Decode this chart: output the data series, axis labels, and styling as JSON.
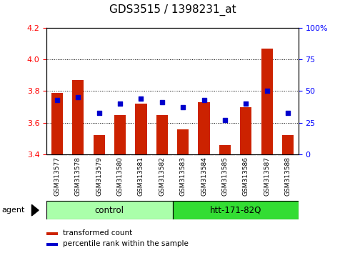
{
  "title": "GDS3515 / 1398231_at",
  "samples": [
    "GSM313577",
    "GSM313578",
    "GSM313579",
    "GSM313580",
    "GSM313581",
    "GSM313582",
    "GSM313583",
    "GSM313584",
    "GSM313585",
    "GSM313586",
    "GSM313587",
    "GSM313588"
  ],
  "transformed_count": [
    3.79,
    3.87,
    3.52,
    3.65,
    3.72,
    3.65,
    3.56,
    3.73,
    3.46,
    3.7,
    4.07,
    3.52
  ],
  "percentile_rank": [
    43,
    45,
    33,
    40,
    44,
    41,
    37,
    43,
    27,
    40,
    50,
    33
  ],
  "ylim_left": [
    3.4,
    4.2
  ],
  "ylim_right": [
    0,
    100
  ],
  "yticks_left": [
    3.4,
    3.6,
    3.8,
    4.0,
    4.2
  ],
  "yticks_right": [
    0,
    25,
    50,
    75,
    100
  ],
  "ytick_labels_right": [
    "0",
    "25",
    "50",
    "75",
    "100%"
  ],
  "groups": [
    {
      "label": "control",
      "indices": [
        0,
        1,
        2,
        3,
        4,
        5
      ],
      "color": "#aaffaa"
    },
    {
      "label": "htt-171-82Q",
      "indices": [
        6,
        7,
        8,
        9,
        10,
        11
      ],
      "color": "#33dd33"
    }
  ],
  "bar_color": "#CC2200",
  "dot_color": "#0000CC",
  "bar_width": 0.55,
  "bg_color": "#FFFFFF",
  "label_bg": "#C8C8C8",
  "agent_label": "agent",
  "legend_tc": "transformed count",
  "legend_pr": "percentile rank within the sample",
  "title_fontsize": 11,
  "tick_fontsize": 8,
  "label_fontsize": 8,
  "sample_fontsize": 6.5
}
